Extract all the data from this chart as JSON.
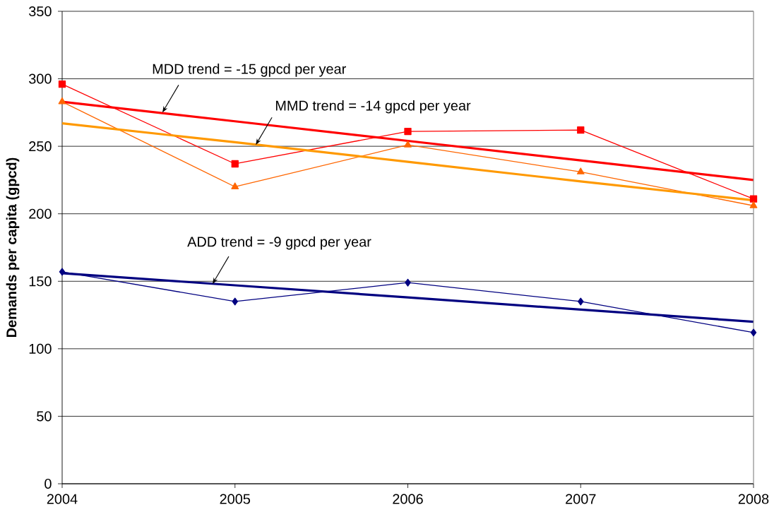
{
  "chart_data": {
    "type": "line",
    "ylabel": "Demands per capita (gpcd)",
    "x": [
      2004,
      2005,
      2006,
      2007,
      2008
    ],
    "xlim": [
      2004,
      2008
    ],
    "xticks": [
      2004,
      2005,
      2006,
      2007,
      2008
    ],
    "ylim": [
      0,
      350
    ],
    "yticks": [
      0,
      50,
      100,
      150,
      200,
      250,
      300,
      350
    ],
    "grid": "y",
    "series": [
      {
        "color": "#ff0000",
        "marker": "square",
        "values": [
          296,
          237,
          261,
          262,
          211
        ]
      },
      {
        "color": "#ff6600",
        "marker": "triangle",
        "values": [
          283,
          220,
          251,
          231,
          206
        ]
      },
      {
        "color": "#000080",
        "marker": "diamond",
        "values": [
          157,
          135,
          149,
          135,
          112
        ]
      },
      {
        "type": "line",
        "color": "#ff0000",
        "marker": "none",
        "values": [
          283,
          268.5,
          254,
          239.5,
          225
        ]
      },
      {
        "type": "line",
        "color": "#ff9900",
        "marker": "none",
        "values": [
          267,
          253,
          238.5,
          224,
          210
        ]
      },
      {
        "type": "line",
        "color": "#000080",
        "marker": "none",
        "values": [
          156,
          147,
          138,
          129,
          120
        ]
      }
    ],
    "annotations": [
      {
        "text": "MDD trend = -15 gpcd per year",
        "x": 2004.58,
        "y": 275
      },
      {
        "text": "MMD trend = -14 gpcd per year",
        "x": 2005.12,
        "y": 251
      },
      {
        "text": "ADD trend = -9 gpcd per year",
        "x": 2004.87,
        "y": 148
      }
    ]
  }
}
